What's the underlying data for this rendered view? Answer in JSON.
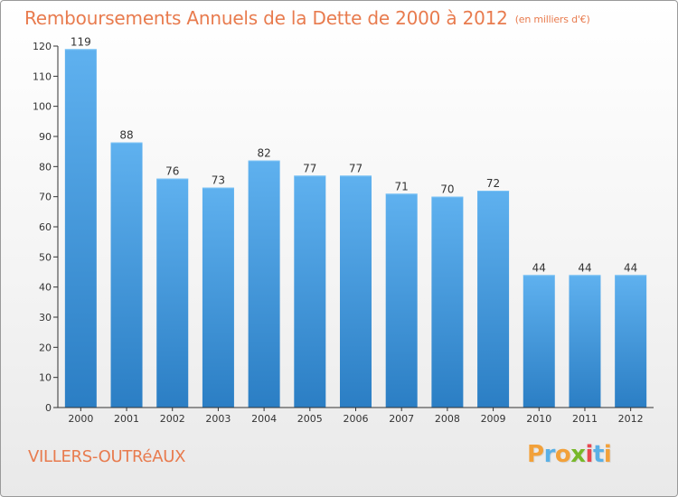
{
  "header": {
    "title": "Remboursements Annuels de la Dette de 2000 à 2012",
    "unit_note": "(en milliers d'€)"
  },
  "footer": {
    "location": "VILLERS-OUTRéAUX",
    "brand_letters": [
      "P",
      "r",
      "o",
      "x",
      "i",
      "t",
      "i"
    ],
    "brand_colors": [
      "#f2a13a",
      "#5ab0e6",
      "#f2a13a",
      "#78b82a",
      "#e8474f",
      "#5ab0e6",
      "#f2a13a"
    ]
  },
  "colors": {
    "bar_top": "#5fb1ef",
    "bar_bottom": "#2b7ec4",
    "title": "#e87b4e",
    "axis": "#333333",
    "grid": "#d8d8d8"
  },
  "chart_data": {
    "type": "bar",
    "title": "Remboursements Annuels de la Dette de 2000 à 2012",
    "subtitle": "(en milliers d'€)",
    "xlabel": "",
    "ylabel": "",
    "categories": [
      "2000",
      "2001",
      "2002",
      "2003",
      "2004",
      "2005",
      "2006",
      "2007",
      "2008",
      "2009",
      "2010",
      "2011",
      "2012"
    ],
    "values": [
      119,
      88,
      76,
      73,
      82,
      77,
      77,
      71,
      70,
      72,
      44,
      44,
      44
    ],
    "ylim": [
      0,
      120
    ],
    "yticks": [
      0,
      10,
      20,
      30,
      40,
      50,
      60,
      70,
      80,
      90,
      100,
      110,
      120
    ],
    "grid": false,
    "data_labels": true
  }
}
